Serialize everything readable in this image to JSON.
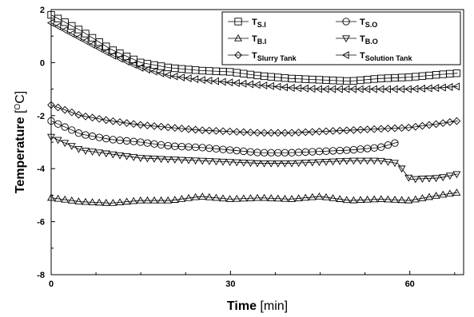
{
  "chart_data": {
    "type": "scatter",
    "title": "",
    "xlabel": {
      "main": "Time",
      "unit": " [min]"
    },
    "ylabel": {
      "main": "Temperature ",
      "unit_open": "[",
      "unit_sup": "O",
      "unit_rest": "C]"
    },
    "xlim": [
      0,
      69
    ],
    "ylim": [
      -8,
      2
    ],
    "xticks": [
      0,
      30,
      60
    ],
    "yticks": [
      2,
      0,
      -2,
      -4,
      -6,
      -8
    ],
    "xtick_labels": [
      "0",
      "30",
      "60"
    ],
    "ytick_labels": [
      "2",
      "0",
      "-2",
      "-4",
      "-6",
      "-8"
    ],
    "legend_position": "top-right",
    "grid": false,
    "series": [
      {
        "name": "T",
        "subscript": "S.I",
        "marker": "square",
        "x": [
          0,
          5,
          10,
          15,
          20,
          25,
          30,
          35,
          40,
          45,
          50,
          55,
          60,
          65,
          68
        ],
        "y": [
          1.8,
          1.2,
          0.5,
          0.0,
          -0.2,
          -0.3,
          -0.35,
          -0.5,
          -0.6,
          -0.65,
          -0.7,
          -0.6,
          -0.55,
          -0.45,
          -0.4
        ]
      },
      {
        "name": "T",
        "subscript": "S.O",
        "marker": "circle",
        "x": [
          0,
          5,
          10,
          15,
          20,
          25,
          30,
          35,
          40,
          45,
          50,
          55,
          58
        ],
        "y": [
          -2.2,
          -2.7,
          -2.9,
          -3.0,
          -3.15,
          -3.2,
          -3.3,
          -3.4,
          -3.4,
          -3.35,
          -3.3,
          -3.2,
          -3.0
        ]
      },
      {
        "name": "T",
        "subscript": "B.I",
        "marker": "triangle-up",
        "x": [
          0,
          5,
          10,
          15,
          20,
          25,
          30,
          35,
          40,
          45,
          50,
          55,
          60,
          65,
          68
        ],
        "y": [
          -5.1,
          -5.25,
          -5.3,
          -5.2,
          -5.2,
          -5.05,
          -5.15,
          -5.1,
          -5.15,
          -5.05,
          -5.2,
          -5.15,
          -5.2,
          -5.0,
          -4.9
        ]
      },
      {
        "name": "T",
        "subscript": "B.O",
        "marker": "triangle-down",
        "x": [
          0,
          5,
          10,
          15,
          20,
          25,
          30,
          35,
          40,
          45,
          50,
          55,
          58,
          60,
          65,
          68
        ],
        "y": [
          -2.8,
          -3.3,
          -3.45,
          -3.6,
          -3.65,
          -3.7,
          -3.75,
          -3.8,
          -3.8,
          -3.75,
          -3.7,
          -3.7,
          -3.8,
          -4.4,
          -4.35,
          -4.2
        ]
      },
      {
        "name": "T",
        "subscript": "Slurry Tank",
        "marker": "diamond",
        "x": [
          0,
          5,
          10,
          15,
          20,
          25,
          30,
          35,
          40,
          45,
          50,
          55,
          60,
          65,
          68
        ],
        "y": [
          -1.6,
          -2.0,
          -2.2,
          -2.35,
          -2.45,
          -2.55,
          -2.6,
          -2.65,
          -2.65,
          -2.6,
          -2.55,
          -2.5,
          -2.45,
          -2.3,
          -2.2
        ]
      },
      {
        "name": "T",
        "subscript": "Solution Tank",
        "marker": "triangle-left",
        "x": [
          0,
          5,
          10,
          15,
          20,
          25,
          30,
          35,
          40,
          45,
          50,
          55,
          60,
          65,
          68
        ],
        "y": [
          1.5,
          0.9,
          0.3,
          -0.2,
          -0.5,
          -0.65,
          -0.75,
          -0.85,
          -0.95,
          -1.0,
          -1.0,
          -1.0,
          -1.0,
          -0.95,
          -0.9
        ]
      }
    ]
  }
}
